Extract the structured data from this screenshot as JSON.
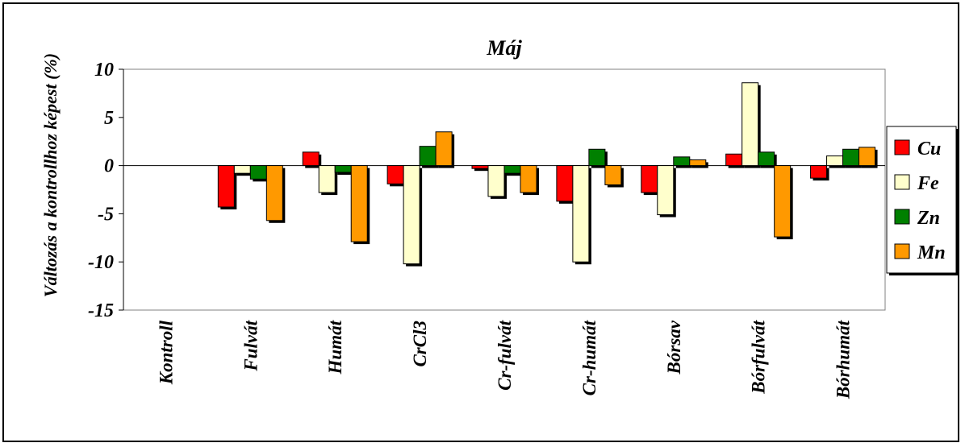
{
  "chart_data": {
    "type": "bar",
    "title": "Máj",
    "xlabel": "",
    "ylabel": "Változás a kontrollhoz képest (%)",
    "ylim": [
      -15,
      10
    ],
    "yticks": [
      10,
      5,
      0,
      -5,
      -10,
      -15
    ],
    "ytick_labels": [
      "10",
      "5",
      "0",
      "-5",
      "-10",
      "-15"
    ],
    "categories": [
      "Kontroll",
      "Fulvát",
      "Humát",
      "CrCl3",
      "Cr-fulvát",
      "Cr-humát",
      "Bórsav",
      "Bórfulvát",
      "Bórhumát"
    ],
    "series": [
      {
        "name": "Cu",
        "color": "#ff0000",
        "values": [
          0,
          -4.3,
          1.4,
          -1.9,
          -0.3,
          -3.7,
          -2.8,
          1.2,
          -1.3
        ]
      },
      {
        "name": "Fe",
        "color": "#ffffcc",
        "values": [
          0,
          -0.8,
          -2.8,
          -10.2,
          -3.2,
          -10.0,
          -5.1,
          8.6,
          1.0
        ]
      },
      {
        "name": "Zn",
        "color": "#008000",
        "values": [
          0,
          -1.4,
          -0.7,
          2.0,
          -0.8,
          1.7,
          0.9,
          1.4,
          1.7
        ]
      },
      {
        "name": "Mn",
        "color": "#ff9900",
        "values": [
          0,
          -5.7,
          -7.9,
          3.5,
          -2.8,
          -2.0,
          0.6,
          -7.4,
          1.9
        ]
      }
    ],
    "grid": false,
    "legend_position": "right"
  }
}
